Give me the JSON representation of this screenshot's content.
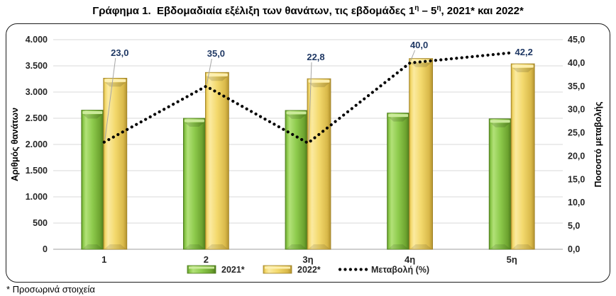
{
  "title": {
    "part1": "Γράφημα 1.  Εβδομαδιαία εξέλιξη των θανάτων, τις εβδομάδες 1",
    "sup1": "η",
    "part2": " – 5",
    "sup2": "η",
    "part3": ", 2021* και 2022*"
  },
  "footnote": "* Προσωρινά στοιχεία",
  "colors": {
    "bar_2021": "#8cc944",
    "bar_2021_edge": "#4d7a1c",
    "bar_2021_light": "#cdeb9e",
    "bar_2022": "#f3d96d",
    "bar_2022_edge": "#9d8026",
    "bar_2022_light": "#fdf0b4",
    "line": "#000000",
    "point_label": "#1F3864",
    "leader": "#a6a6a6",
    "gridline": "#d9d9d9",
    "axis_line": "#bfbfbf",
    "tick_text": "#262626"
  },
  "chart_data": {
    "type": "bar",
    "subtype": "grouped bars with dotted line on secondary axis",
    "categories": [
      "1",
      "2",
      "3η",
      "4η",
      "5η"
    ],
    "series": [
      {
        "name": "2021*",
        "type": "bar",
        "axis": "left",
        "values": [
          2655,
          2500,
          2650,
          2600,
          2490
        ]
      },
      {
        "name": "2022*",
        "type": "bar",
        "axis": "left",
        "values": [
          3265,
          3375,
          3255,
          3640,
          3540
        ]
      },
      {
        "name": "Μεταβολή (%)",
        "type": "line",
        "style": "dotted",
        "axis": "right",
        "values": [
          23.0,
          35.0,
          22.8,
          40.0,
          42.2
        ],
        "point_labels": [
          "23,0",
          "35,0",
          "22,8",
          "40,0",
          "42,2"
        ]
      }
    ],
    "left_axis": {
      "title": "Αριθμός θανάτων",
      "min": 0,
      "max": 4000,
      "step": 500,
      "tick_labels": [
        "0",
        "500",
        "1.000",
        "1.500",
        "2.000",
        "2.500",
        "3.000",
        "3.500",
        "4.000"
      ]
    },
    "right_axis": {
      "title": "Ποσοστό μεταβολής",
      "min": 0,
      "max": 45,
      "step": 5,
      "tick_labels": [
        "0,0",
        "5,0",
        "10,0",
        "15,0",
        "20,0",
        "25,0",
        "30,0",
        "35,0",
        "40,0",
        "45,0"
      ]
    },
    "legend": {
      "position": "bottom",
      "entries": [
        "2021*",
        "2022*",
        "Μεταβολή (%)"
      ]
    },
    "grid": true
  }
}
